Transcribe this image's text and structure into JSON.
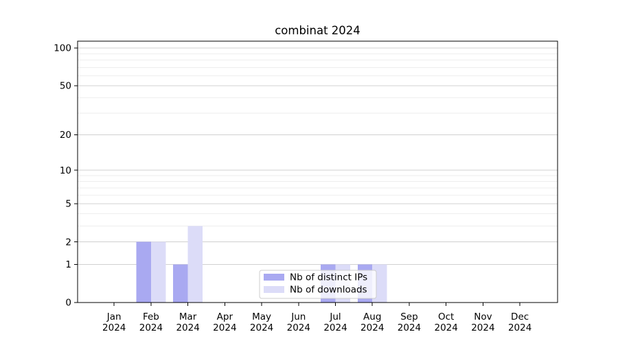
{
  "title": "combinat 2024",
  "chart_data": {
    "type": "bar",
    "title": "combinat 2024",
    "scale": "log1p",
    "categories": [
      "Jan",
      "Feb",
      "Mar",
      "Apr",
      "May",
      "Jun",
      "Jul",
      "Aug",
      "Sep",
      "Oct",
      "Nov",
      "Dec"
    ],
    "year": "2024",
    "series": [
      {
        "name": "Nb of distinct IPs",
        "color": "#a9a9f1",
        "values": [
          0,
          2,
          1,
          0,
          0,
          0,
          1,
          1,
          0,
          0,
          0,
          0
        ]
      },
      {
        "name": "Nb of downloads",
        "color": "#dcdcf8",
        "values": [
          0,
          2,
          3,
          0,
          0,
          0,
          1,
          1,
          0,
          0,
          0,
          0
        ]
      }
    ],
    "yticks": [
      0,
      1,
      2,
      5,
      10,
      20,
      50,
      100
    ],
    "minor_gridlines": [
      3,
      4,
      6,
      7,
      8,
      9,
      30,
      40,
      60,
      70,
      80,
      90
    ],
    "ylim": [
      0,
      113
    ],
    "xlabel": "",
    "ylabel": "",
    "grid": true,
    "legend_position": "lower-center",
    "colors": {
      "bar_distinct_ips": "#a9a9f1",
      "bar_downloads": "#dcdcf8",
      "grid_major": "#d0d0d0",
      "grid_minor": "#eeeeee",
      "spine": "#000000",
      "text": "#000000",
      "legend_border": "#cccccc",
      "legend_background": "rgba(255,255,255,0.8)"
    }
  }
}
